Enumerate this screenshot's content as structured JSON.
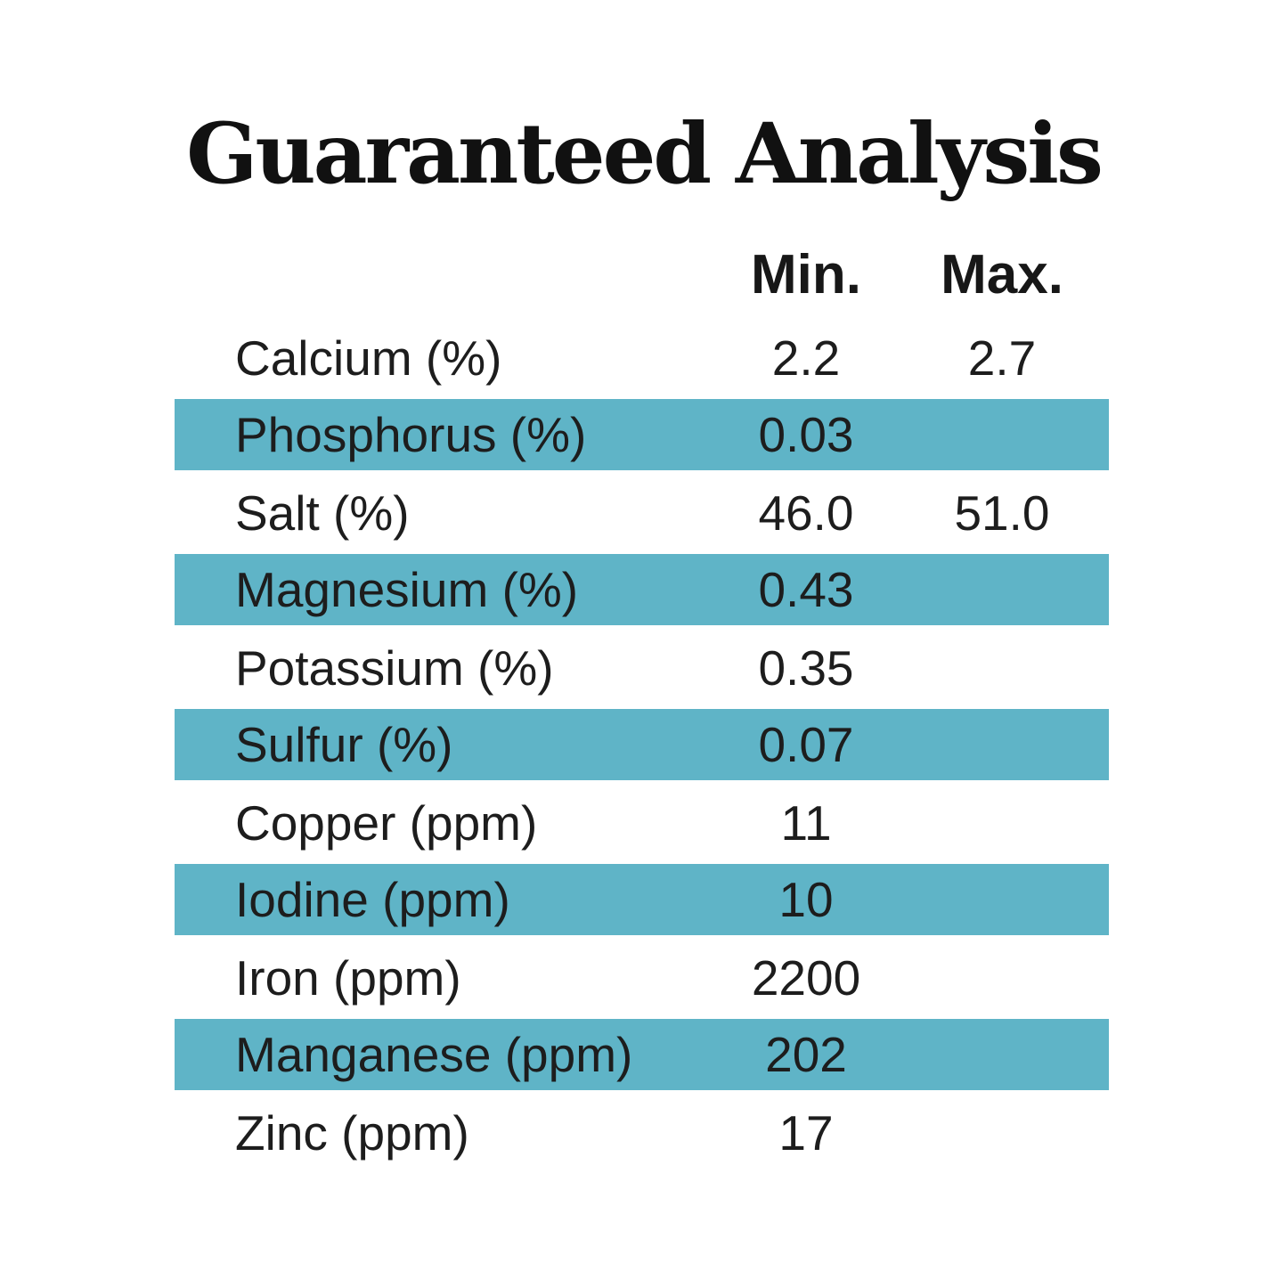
{
  "title": "Guaranteed Analysis",
  "table": {
    "headers": {
      "min": "Min.",
      "max": "Max."
    },
    "rows": [
      {
        "label": "Calcium (%)",
        "min": "2.2",
        "max": "2.7",
        "highlight": false
      },
      {
        "label": "Phosphorus (%)",
        "min": "0.03",
        "max": "",
        "highlight": true
      },
      {
        "label": "Salt (%)",
        "min": "46.0",
        "max": "51.0",
        "highlight": false
      },
      {
        "label": "Magnesium (%)",
        "min": "0.43",
        "max": "",
        "highlight": true
      },
      {
        "label": "Potassium (%)",
        "min": "0.35",
        "max": "",
        "highlight": false
      },
      {
        "label": "Sulfur (%)",
        "min": "0.07",
        "max": "",
        "highlight": true
      },
      {
        "label": "Copper (ppm)",
        "min": "11",
        "max": "",
        "highlight": false
      },
      {
        "label": "Iodine (ppm)",
        "min": "10",
        "max": "",
        "highlight": true
      },
      {
        "label": "Iron (ppm)",
        "min": "2200",
        "max": "",
        "highlight": false
      },
      {
        "label": "Manganese (ppm)",
        "min": "202",
        "max": "",
        "highlight": true
      },
      {
        "label": "Zinc (ppm)",
        "min": "17",
        "max": "",
        "highlight": false
      }
    ]
  },
  "colors": {
    "highlight": "#5fb4c7",
    "text": "#1d1d1d",
    "background": "#ffffff"
  }
}
